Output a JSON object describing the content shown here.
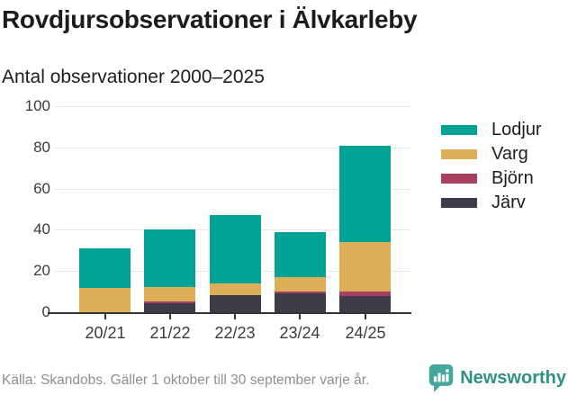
{
  "header": {
    "title": "Rovdjursobservationer i Älvkarleby",
    "subtitle": "Antal observationer 2000–2025"
  },
  "chart_data": {
    "type": "bar",
    "stacked": true,
    "title": "Rovdjursobservationer i Älvkarleby",
    "subtitle": "Antal observationer 2000–2025",
    "categories": [
      "20/21",
      "21/22",
      "22/23",
      "23/24",
      "24/25"
    ],
    "series": [
      {
        "name": "Lodjur",
        "color": "#00a396",
        "values": [
          19,
          28,
          33,
          22,
          47
        ]
      },
      {
        "name": "Varg",
        "color": "#dcae57",
        "values": [
          12,
          7,
          6,
          7,
          24
        ]
      },
      {
        "name": "Björn",
        "color": "#a84060",
        "values": [
          0,
          1,
          0,
          1,
          2
        ]
      },
      {
        "name": "Järv",
        "color": "#3e3b4b",
        "values": [
          0,
          4,
          8,
          9,
          8
        ]
      }
    ],
    "stack_order_bottom_to_top": [
      "Järv",
      "Björn",
      "Varg",
      "Lodjur"
    ],
    "totals": [
      31,
      40,
      47,
      39,
      81
    ],
    "xlabel": "",
    "ylabel": "",
    "ylim": [
      0,
      100
    ],
    "yticks": [
      0,
      20,
      40,
      60,
      80,
      100
    ],
    "grid": "horizontal",
    "legend_position": "right"
  },
  "footer": {
    "source": "Källa: Skandobs. Gäller 1 oktober till 30 september varje år.",
    "brand": "Newsworthy"
  },
  "colors": {
    "title_text": "#1c1c1a",
    "axis_text": "#3b3b3b",
    "gridline": "#e7e7e7",
    "axis_line": "#333333",
    "source_text": "#8f8f8f",
    "brand_teal": "#2e9087",
    "logo_icon_teal": "#44a79b"
  }
}
